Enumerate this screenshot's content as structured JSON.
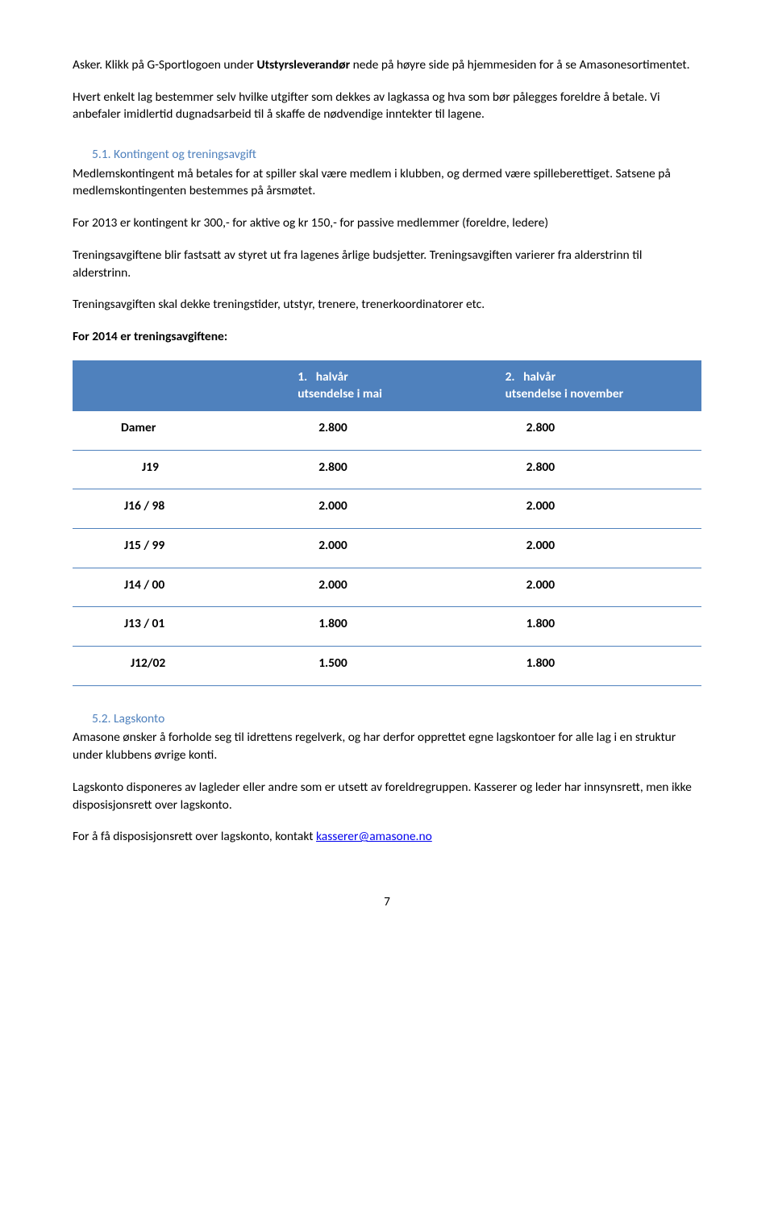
{
  "intro": {
    "p1a": "Asker. Klikk på G-Sportlogoen under ",
    "p1b": "Utstyrsleverandør",
    "p1c": " nede på høyre side på hjemmesiden for å se Amasonesortimentet.",
    "p2": "Hvert enkelt lag bestemmer selv hvilke utgifter som dekkes av lagkassa og hva som bør pålegges foreldre å betale. Vi anbefaler imidlertid dugnadsarbeid til å skaffe de nødvendige inntekter til lagene."
  },
  "section51": {
    "heading": "5.1. Kontingent og treningsavgift",
    "p1": "Medlemskontingent må betales for at spiller skal være medlem i klubben, og dermed være spilleberettiget. Satsene på medlemskontingenten bestemmes på årsmøtet.",
    "p2": "For 2013 er kontingent kr 300,- for aktive og kr 150,- for passive medlemmer (foreldre, ledere)",
    "p3": "Treningsavgiftene blir fastsatt av styret ut fra lagenes årlige budsjetter. Treningsavgiften varierer fra alderstrinn til alderstrinn.",
    "p4": "Treningsavgiften skal dekke treningstider, utstyr, trenere, trenerkoordinatorer etc.",
    "p5": "For 2014 er treningsavgiftene:"
  },
  "table": {
    "header_col1": "",
    "header_col2_l1": "1.   halvår",
    "header_col2_l2": "utsendelse i mai",
    "header_col3_l1": "2.   halvår",
    "header_col3_l2": "utsendelse i november",
    "rows": [
      {
        "label": "Damer",
        "c1": "2.800",
        "c2": "2.800"
      },
      {
        "label": "J19",
        "c1": "2.800",
        "c2": "2.800"
      },
      {
        "label": "J16 / 98",
        "c1": "2.000",
        "c2": "2.000"
      },
      {
        "label": "J15 / 99",
        "c1": "2.000",
        "c2": "2.000"
      },
      {
        "label": "J14 / 00",
        "c1": "2.000",
        "c2": "2.000"
      },
      {
        "label": "J13 / 01",
        "c1": "1.800",
        "c2": "1.800"
      },
      {
        "label": "J12/02",
        "c1": "1.500",
        "c2": "1.800"
      }
    ]
  },
  "section52": {
    "heading": "5.2. Lagskonto",
    "p1": "Amasone ønsker å forholde seg til idrettens regelverk, og har derfor opprettet egne lagskontoer for alle lag i en struktur under klubbens øvrige konti.",
    "p2": "Lagskonto disponeres av lagleder eller andre som er utsett av foreldregruppen. Kasserer og leder har innsynsrett, men ikke disposisjonsrett over lagskonto.",
    "p3a": "For å få disposisjonsrett over lagskonto, kontakt ",
    "email": "kasserer@amasone.no"
  },
  "page_number": "7",
  "colors": {
    "accent": "#4f81bd",
    "link": "#0000ee"
  }
}
